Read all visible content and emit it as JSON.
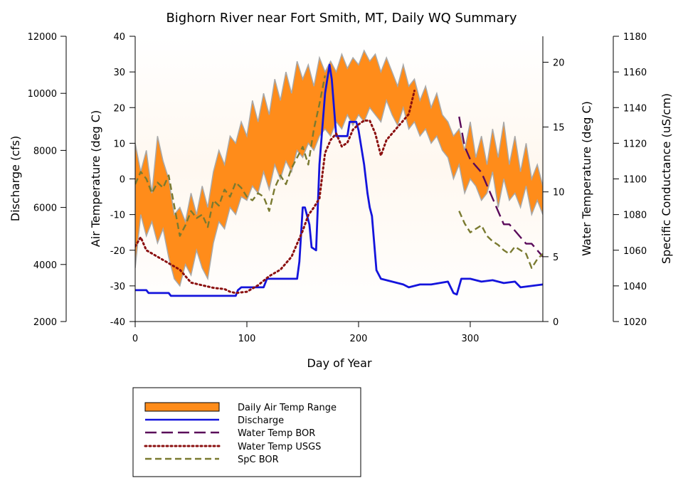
{
  "chart_data": {
    "type": "line",
    "title": "Bighorn River near Fort Smith, MT, Daily WQ Summary",
    "xlabel": "Day of Year",
    "grid": false,
    "legend_position": "bottom-left",
    "axes": {
      "x": {
        "range": [
          0,
          365
        ],
        "ticks": [
          0,
          100,
          200,
          300
        ],
        "tick_labels": [
          "0",
          "100",
          "200",
          "300"
        ]
      },
      "discharge": {
        "label": "Discharge (cfs)",
        "range": [
          2000,
          12000
        ],
        "ticks": [
          2000,
          4000,
          6000,
          8000,
          10000,
          12000
        ],
        "tick_labels": [
          "2000",
          "4000",
          "6000",
          "8000",
          "10000",
          "12000"
        ]
      },
      "air_temp": {
        "label": "Air Temperature (deg C)",
        "range": [
          -40,
          40
        ],
        "ticks": [
          -40,
          -30,
          -20,
          -10,
          0,
          10,
          20,
          30,
          40
        ],
        "tick_labels": [
          "-40",
          "-30",
          "-20",
          "-10",
          "0",
          "10",
          "20",
          "30",
          "40"
        ]
      },
      "water_temp": {
        "label": "Water Temperature (deg C)",
        "range": [
          0,
          22
        ],
        "ticks": [
          0,
          5,
          10,
          15,
          20
        ],
        "tick_labels": [
          "0",
          "5",
          "10",
          "15",
          "20"
        ]
      },
      "spc": {
        "label": "Specific Conductance (uS/cm)",
        "range": [
          1020,
          1180
        ],
        "ticks": [
          1020,
          1040,
          1060,
          1080,
          1100,
          1120,
          1140,
          1160,
          1180
        ],
        "tick_labels": [
          "1020",
          "1040",
          "1060",
          "1080",
          "1100",
          "1120",
          "1140",
          "1160",
          "1180"
        ]
      }
    },
    "series": [
      {
        "name": "Daily Air Temp Range",
        "axis": "air_temp",
        "style": "band",
        "color": "#ff8c1a",
        "edge_color": "#a8a8a8",
        "x": [
          0,
          5,
          10,
          15,
          20,
          25,
          30,
          35,
          40,
          45,
          50,
          55,
          60,
          65,
          70,
          75,
          80,
          85,
          90,
          95,
          100,
          105,
          110,
          115,
          120,
          125,
          130,
          135,
          140,
          145,
          150,
          155,
          160,
          165,
          170,
          175,
          180,
          185,
          190,
          195,
          200,
          205,
          210,
          215,
          220,
          225,
          230,
          235,
          240,
          245,
          250,
          255,
          260,
          265,
          270,
          275,
          280,
          285,
          290,
          295,
          300,
          305,
          310,
          315,
          320,
          325,
          330,
          335,
          340,
          345,
          350,
          355,
          360,
          365
        ],
        "low": [
          -25,
          -10,
          -16,
          -12,
          -18,
          -14,
          -22,
          -28,
          -30,
          -24,
          -27,
          -20,
          -25,
          -28,
          -18,
          -12,
          -14,
          -8,
          -10,
          -5,
          -6,
          -2,
          -4,
          2,
          -3,
          4,
          0,
          5,
          2,
          8,
          6,
          10,
          8,
          12,
          14,
          12,
          16,
          14,
          18,
          15,
          18,
          16,
          20,
          18,
          16,
          22,
          18,
          15,
          20,
          14,
          16,
          12,
          14,
          10,
          12,
          8,
          6,
          0,
          4,
          -4,
          0,
          -2,
          -6,
          -4,
          2,
          -8,
          0,
          -6,
          -4,
          -8,
          -2,
          -10,
          -6,
          -10
        ],
        "high": [
          10,
          2,
          8,
          -4,
          12,
          5,
          0,
          -10,
          -8,
          -12,
          -4,
          -10,
          -2,
          -8,
          2,
          8,
          4,
          12,
          10,
          16,
          12,
          22,
          16,
          24,
          18,
          28,
          22,
          30,
          24,
          33,
          28,
          32,
          26,
          34,
          30,
          33,
          30,
          35,
          31,
          34,
          32,
          36,
          33,
          35,
          30,
          34,
          30,
          26,
          32,
          26,
          28,
          22,
          26,
          20,
          24,
          18,
          16,
          12,
          14,
          8,
          16,
          6,
          12,
          4,
          14,
          6,
          16,
          4,
          12,
          2,
          10,
          0,
          4,
          -2
        ]
      },
      {
        "name": "Discharge",
        "axis": "discharge",
        "style": "solid",
        "color": "#1414dc",
        "x": [
          0,
          10,
          12,
          30,
          32,
          60,
          90,
          92,
          95,
          115,
          118,
          145,
          147,
          150,
          152,
          156,
          158,
          162,
          165,
          170,
          174,
          176,
          180,
          185,
          190,
          192,
          198,
          200,
          205,
          208,
          210,
          212,
          216,
          220,
          230,
          240,
          245,
          255,
          265,
          280,
          285,
          288,
          292,
          300,
          310,
          320,
          330,
          340,
          345,
          355,
          365
        ],
        "y": [
          3100,
          3100,
          3000,
          3000,
          2900,
          2900,
          2900,
          3100,
          3200,
          3200,
          3500,
          3500,
          4100,
          6000,
          6000,
          5400,
          4600,
          4500,
          7500,
          10000,
          11000,
          10500,
          8500,
          8500,
          8500,
          9000,
          9000,
          8700,
          7500,
          6500,
          6000,
          5700,
          3800,
          3500,
          3400,
          3300,
          3200,
          3300,
          3300,
          3400,
          3000,
          2950,
          3500,
          3500,
          3400,
          3450,
          3350,
          3400,
          3200,
          3250,
          3300
        ]
      },
      {
        "name": "Water Temp BOR",
        "axis": "water_temp",
        "style": "long-dash",
        "color": "#5a0a5a",
        "x": [
          290,
          295,
          300,
          305,
          310,
          315,
          320,
          325,
          330,
          335,
          340,
          345,
          350,
          355,
          360,
          365
        ],
        "y": [
          15.8,
          13.5,
          12.5,
          12.0,
          11.5,
          10.5,
          9.5,
          8.5,
          7.5,
          7.5,
          7.0,
          6.5,
          6.0,
          6.0,
          5.5,
          5.0
        ]
      },
      {
        "name": "Water Temp USGS",
        "axis": "water_temp",
        "style": "dotted",
        "color": "#8b1010",
        "x": [
          0,
          5,
          10,
          20,
          30,
          40,
          50,
          60,
          70,
          80,
          85,
          90,
          100,
          110,
          120,
          130,
          140,
          145,
          150,
          155,
          160,
          165,
          170,
          175,
          180,
          185,
          190,
          195,
          200,
          205,
          210,
          215,
          220,
          225,
          230,
          235,
          240,
          245,
          250
        ],
        "y": [
          5.8,
          6.5,
          5.5,
          5.0,
          4.5,
          4.0,
          3.0,
          2.8,
          2.6,
          2.5,
          2.3,
          2.2,
          2.3,
          2.8,
          3.5,
          4.0,
          5.0,
          6.0,
          7.0,
          8.2,
          8.8,
          9.5,
          13.0,
          14.0,
          14.5,
          13.5,
          13.8,
          14.8,
          15.2,
          15.5,
          15.5,
          14.5,
          12.8,
          14.0,
          14.5,
          15.0,
          15.5,
          16.0,
          17.8
        ]
      },
      {
        "name": "SpC BOR",
        "axis": "spc",
        "style": "dash",
        "color": "#7a7a30",
        "x": [
          0,
          5,
          10,
          15,
          20,
          25,
          30,
          35,
          40,
          45,
          50,
          55,
          60,
          65,
          70,
          75,
          80,
          85,
          90,
          95,
          100,
          105,
          110,
          115,
          120,
          125,
          130,
          135,
          140,
          145,
          150,
          155,
          160,
          165,
          170,
          null,
          290,
          295,
          300,
          305,
          310,
          315,
          320,
          325,
          330,
          335,
          340,
          345,
          350,
          355,
          360,
          365
        ],
        "y": [
          1097,
          1104,
          1100,
          1092,
          1098,
          1095,
          1102,
          1085,
          1068,
          1074,
          1082,
          1078,
          1080,
          1073,
          1088,
          1085,
          1094,
          1090,
          1098,
          1095,
          1090,
          1088,
          1092,
          1090,
          1082,
          1095,
          1102,
          1097,
          1106,
          1112,
          1118,
          1108,
          1128,
          1142,
          1158,
          null,
          1082,
          1075,
          1070,
          1072,
          1074,
          1068,
          1065,
          1063,
          1060,
          1058,
          1062,
          1060,
          1058,
          1050,
          1055,
          1058
        ]
      }
    ]
  }
}
